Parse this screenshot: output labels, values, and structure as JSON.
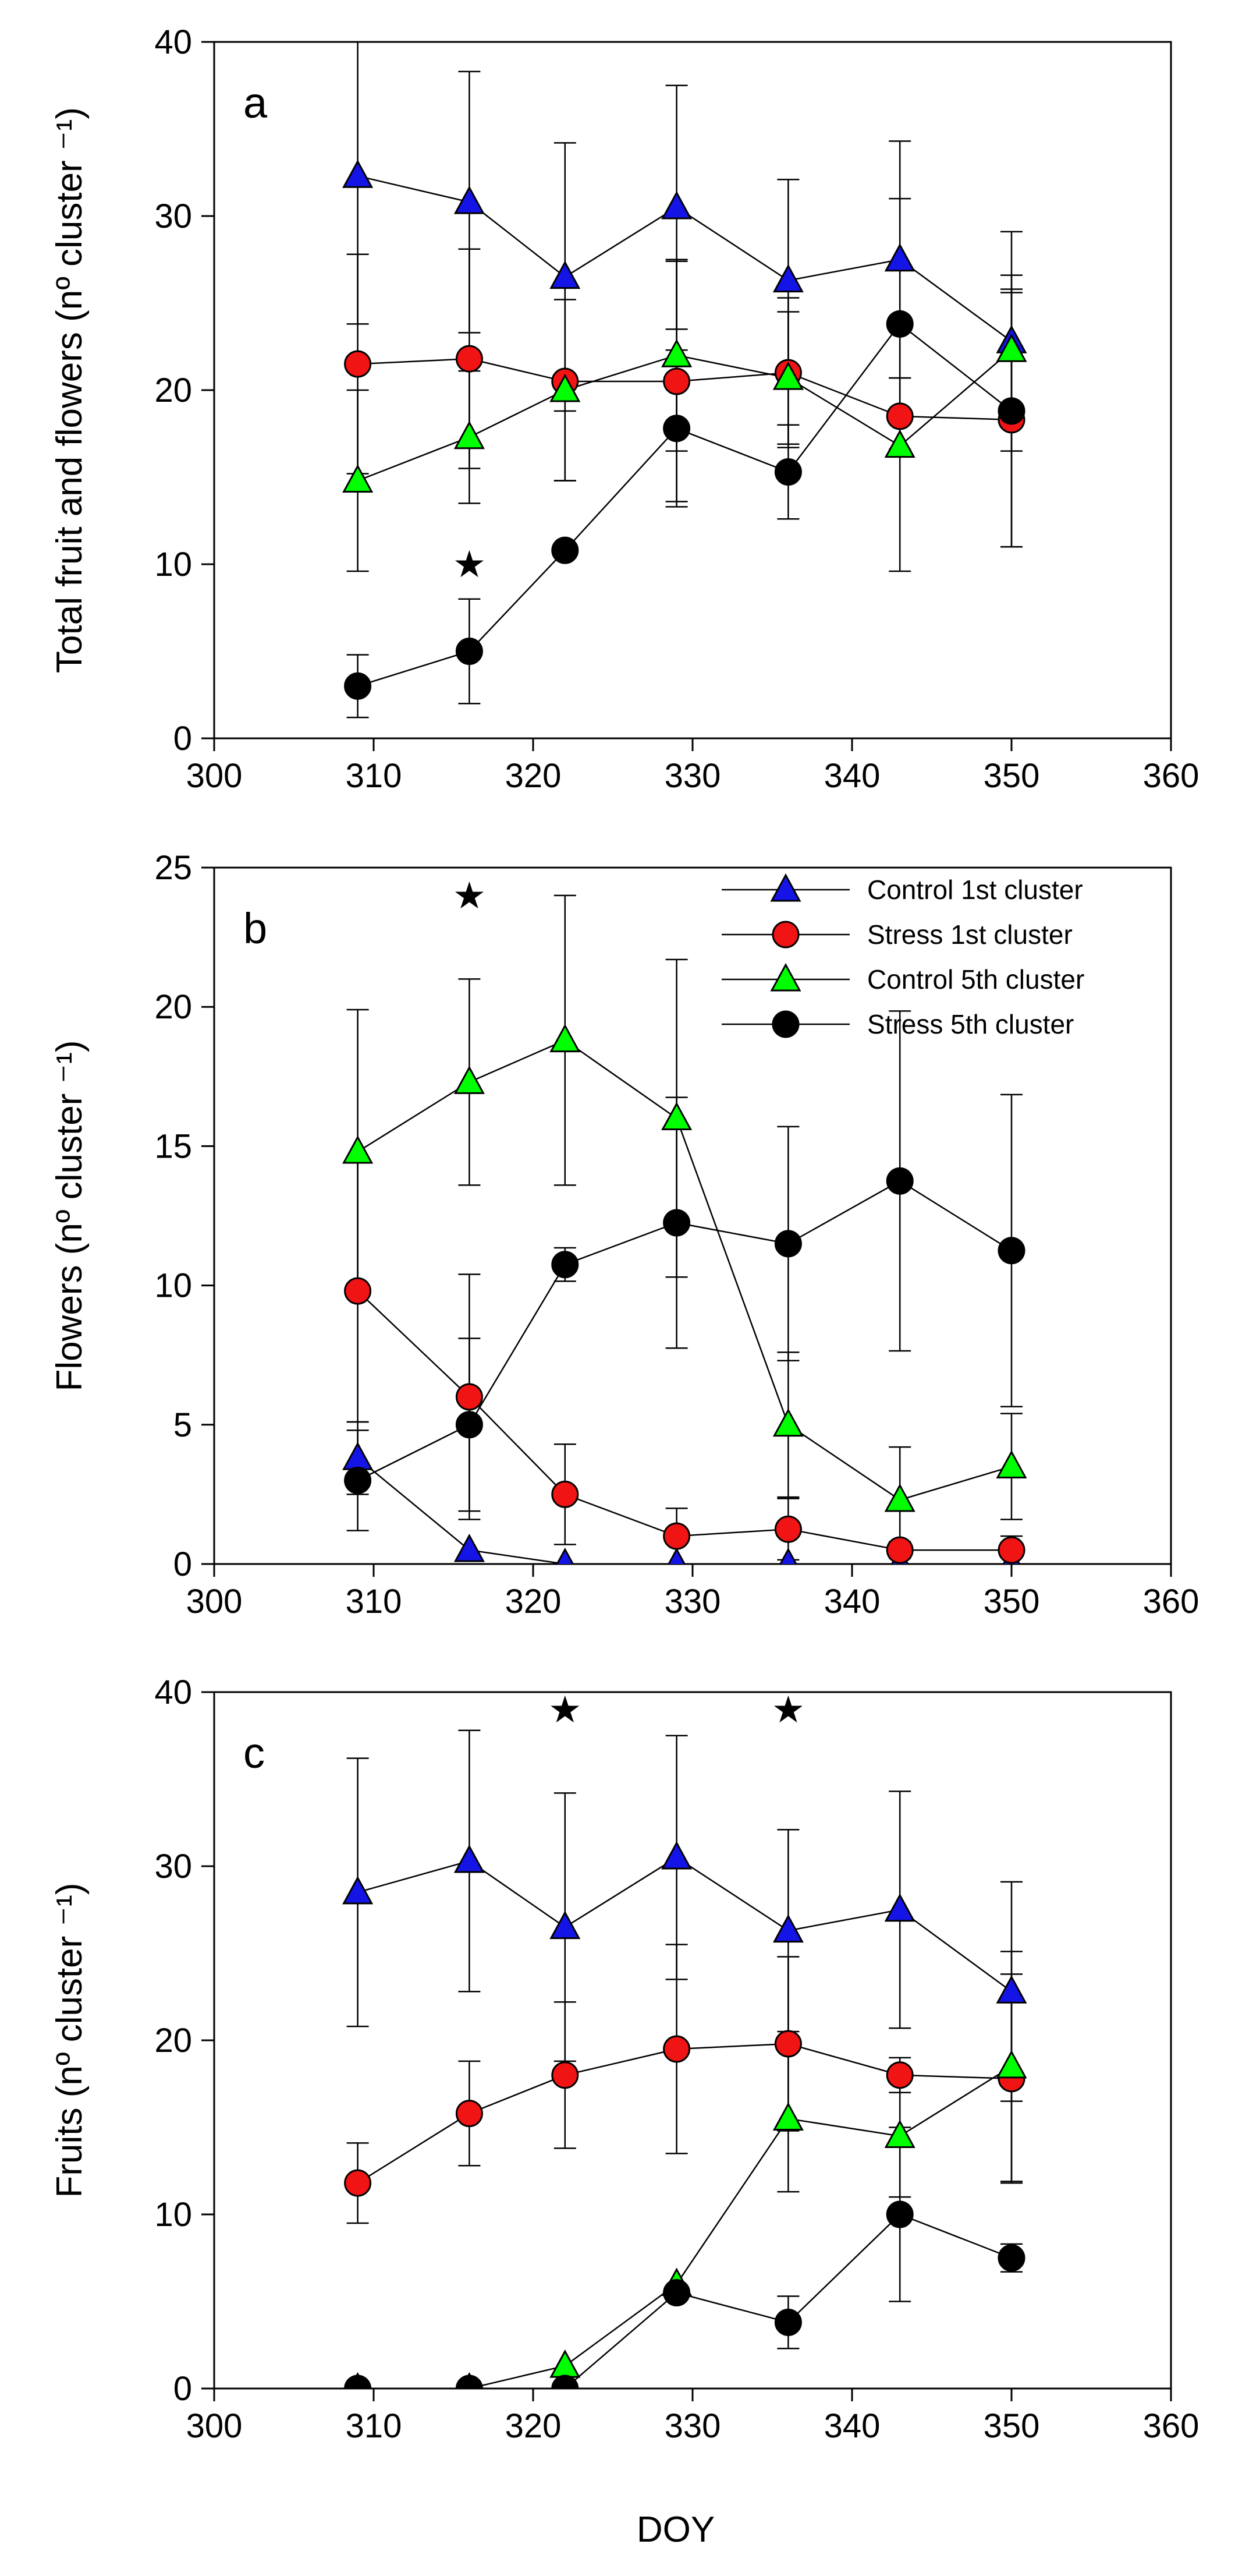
{
  "figure": {
    "shared_xlabel": "DOY"
  },
  "chart_data": [
    {
      "type": "line",
      "panel": "a",
      "title": "",
      "xlabel": "",
      "ylabel": "Total fruit and flowers (nº cluster ⁻¹)",
      "xlim": [
        300,
        360
      ],
      "ylim": [
        0,
        40
      ],
      "xticks": [
        300,
        310,
        320,
        330,
        340,
        350,
        360
      ],
      "yticks": [
        0,
        10,
        20,
        30,
        40
      ],
      "x": [
        309,
        316,
        322,
        329,
        336,
        343,
        350
      ],
      "series": [
        {
          "name": "Control 1st cluster",
          "marker": "triangle",
          "color": "#1414e6",
          "values": [
            32.3,
            30.8,
            26.5,
            30.5,
            26.3,
            27.5,
            22.8
          ],
          "error": [
            8.5,
            7.5,
            7.7,
            7.0,
            5.8,
            6.8,
            6.3
          ]
        },
        {
          "name": "Stress 1st cluster",
          "marker": "circle",
          "color": "#f01414",
          "values": [
            21.5,
            21.8,
            20.5,
            20.5,
            21.0,
            18.5,
            18.3
          ],
          "error": [
            6.3,
            6.3,
            5.7,
            6.9,
            4.3,
            2.2,
            7.3
          ]
        },
        {
          "name": "Control 5th cluster",
          "marker": "triangle",
          "color": "#00ff00",
          "values": [
            14.8,
            17.3,
            20.0,
            22.0,
            20.7,
            16.8,
            22.3
          ],
          "error": [
            5.2,
            3.8,
            5.2,
            5.5,
            3.8,
            7.2,
            3.5
          ]
        },
        {
          "name": "Stress 5th cluster",
          "marker": "circle",
          "color": "#000000",
          "values": [
            3.0,
            5.0,
            10.8,
            17.8,
            15.3,
            23.8,
            18.8
          ],
          "error": [
            1.8,
            3.0,
            0.3,
            4.5,
            2.7,
            7.2,
            7.8
          ]
        }
      ],
      "significance_markers": [
        {
          "x": 316,
          "y": 10,
          "symbol": "★"
        }
      ]
    },
    {
      "type": "line",
      "panel": "b",
      "title": "",
      "xlabel": "",
      "ylabel": "Flowers (nº cluster ⁻¹)",
      "xlim": [
        300,
        360
      ],
      "ylim": [
        0,
        25
      ],
      "xticks": [
        300,
        310,
        320,
        330,
        340,
        350,
        360
      ],
      "yticks": [
        0,
        5,
        10,
        15,
        20,
        25
      ],
      "x": [
        309,
        316,
        322,
        329,
        336,
        343,
        350
      ],
      "legend": {
        "placement": "top-right",
        "entries": [
          "Control 1st cluster",
          "Stress 1st cluster",
          "Control 5th cluster",
          "Stress 5th cluster"
        ]
      },
      "series": [
        {
          "name": "Control 1st cluster",
          "marker": "triangle",
          "color": "#1414e6",
          "values": [
            3.8,
            0.5,
            0.0,
            0.0,
            0.0,
            0.0,
            0.0
          ],
          "error": [
            1.3,
            0.0,
            0.0,
            0.0,
            0.0,
            0.0,
            0.0
          ]
        },
        {
          "name": "Stress 1st cluster",
          "marker": "circle",
          "color": "#f01414",
          "values": [
            9.8,
            6.0,
            2.5,
            1.0,
            1.25,
            0.5,
            0.5
          ],
          "error": [
            4.7,
            4.4,
            1.8,
            1.0,
            1.1,
            0.3,
            0.5
          ]
        },
        {
          "name": "Control 5th cluster",
          "marker": "triangle",
          "color": "#00ff00",
          "values": [
            14.8,
            17.3,
            18.8,
            16.0,
            5.0,
            2.3,
            3.5
          ],
          "error": [
            5.1,
            3.7,
            5.2,
            5.7,
            2.6,
            1.9,
            1.9
          ]
        },
        {
          "name": "Stress 5th cluster",
          "marker": "circle",
          "color": "#000000",
          "values": [
            3.0,
            5.0,
            10.75,
            12.25,
            11.5,
            13.75,
            11.25
          ],
          "error": [
            1.8,
            3.1,
            0.6,
            4.5,
            4.2,
            6.1,
            5.6
          ]
        }
      ],
      "significance_markers": [
        {
          "x": 316,
          "y": 24,
          "symbol": "★"
        }
      ]
    },
    {
      "type": "line",
      "panel": "c",
      "title": "",
      "xlabel": "DOY",
      "ylabel": "Fruits (nº cluster ⁻¹)",
      "xlim": [
        300,
        360
      ],
      "ylim": [
        0,
        40
      ],
      "xticks": [
        300,
        310,
        320,
        330,
        340,
        350,
        360
      ],
      "yticks": [
        0,
        10,
        20,
        30,
        40
      ],
      "x": [
        309,
        316,
        322,
        329,
        336,
        343,
        350
      ],
      "series": [
        {
          "name": "Control 1st cluster",
          "marker": "triangle",
          "color": "#1414e6",
          "values": [
            28.5,
            30.3,
            26.5,
            30.5,
            26.3,
            27.5,
            22.8
          ],
          "error": [
            7.7,
            7.5,
            7.7,
            7.0,
            5.8,
            6.8,
            6.3
          ]
        },
        {
          "name": "Stress 1st cluster",
          "marker": "circle",
          "color": "#f01414",
          "values": [
            11.8,
            15.8,
            18.0,
            19.5,
            19.8,
            18.0,
            17.8
          ],
          "error": [
            2.3,
            3.0,
            4.2,
            6.0,
            5.0,
            1.0,
            6.0
          ]
        },
        {
          "name": "Control 5th cluster",
          "marker": "triangle",
          "color": "#00ff00",
          "values": [
            0.0,
            0.0,
            1.3,
            6.0,
            15.5,
            14.5,
            18.5
          ],
          "error": [
            0.0,
            0.0,
            0.0,
            0.0,
            4.2,
            3.5,
            6.6
          ]
        },
        {
          "name": "Stress 5th cluster",
          "marker": "circle",
          "color": "#000000",
          "values": [
            0.0,
            0.0,
            0.0,
            5.5,
            3.8,
            10.0,
            7.5
          ],
          "error": [
            0.0,
            0.0,
            0.0,
            0.0,
            1.5,
            5.0,
            0.8
          ]
        }
      ],
      "significance_markers": [
        {
          "x": 322,
          "y": 39,
          "symbol": "★"
        },
        {
          "x": 336,
          "y": 39,
          "symbol": "★"
        }
      ]
    }
  ]
}
